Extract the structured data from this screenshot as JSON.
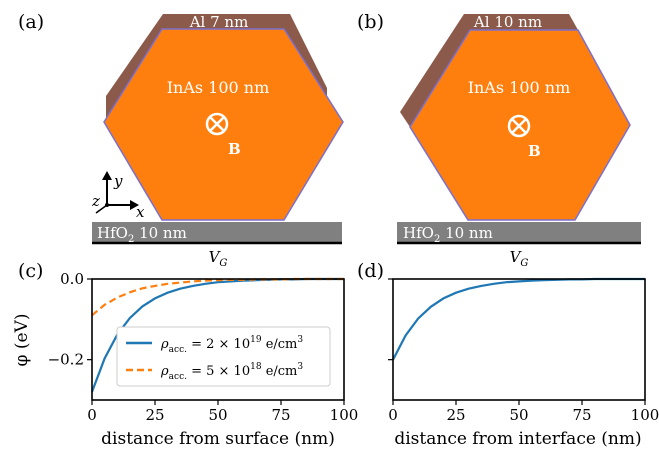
{
  "colors": {
    "inas": "#ff7f0e",
    "inas_outline": "#7b6fd0",
    "al": "#8b5a4a",
    "hfo2": "#808080",
    "gate": "#000000",
    "blue": "#1f77b4",
    "orange": "#ff7f0e"
  },
  "panel_a": {
    "label": "(a)",
    "al_label": "Al 7 nm",
    "inas_label": "InAs 100 nm",
    "b_label": "B",
    "hfo2_label": "HfO",
    "hfo2_sub": "2",
    "hfo2_rest": " 10 nm",
    "gate_label": "V",
    "gate_sub": "G",
    "axis_x": "x",
    "axis_y": "y",
    "axis_z": "z",
    "field_icon": "circled-cross-icon"
  },
  "panel_b": {
    "label": "(b)",
    "al_label": "Al 10 nm",
    "inas_label": "InAs 100 nm",
    "b_label": "B",
    "hfo2_label": "HfO",
    "hfo2_sub": "2",
    "hfo2_rest": " 10 nm",
    "gate_label": "V",
    "gate_sub": "G",
    "field_icon": "circled-cross-icon"
  },
  "chart_data": [
    {
      "panel": "(c)",
      "type": "line",
      "xlabel": "distance from surface (nm)",
      "ylabel": "φ (eV)",
      "xlim": [
        0,
        100
      ],
      "ylim": [
        -0.3,
        0.0
      ],
      "xticks": [
        "0",
        "25",
        "50",
        "75",
        "100"
      ],
      "yticks": [
        "0.0",
        "−0.2"
      ],
      "legend_position": "lower-right",
      "series": [
        {
          "name_main": "ρ",
          "name_sub": "acc.",
          "name_value": " = 2 × 10",
          "name_exp": "19",
          "name_unit": " e/cm",
          "name_unit_exp": "3",
          "style": "solid",
          "color": "#1f77b4",
          "x": [
            0,
            5,
            10,
            15,
            20,
            25,
            30,
            35,
            40,
            45,
            50,
            55,
            60,
            65,
            70,
            75,
            80,
            85,
            90,
            95,
            100
          ],
          "y": [
            -0.28,
            -0.197,
            -0.138,
            -0.097,
            -0.068,
            -0.048,
            -0.034,
            -0.024,
            -0.017,
            -0.012,
            -0.008,
            -0.006,
            -0.004,
            -0.003,
            -0.002,
            -0.001,
            -0.001,
            0.0,
            0.0,
            0.0,
            0.0
          ]
        },
        {
          "name_main": "ρ",
          "name_sub": "acc.",
          "name_value": " = 5 × 10",
          "name_exp": "18",
          "name_unit": " e/cm",
          "name_unit_exp": "3",
          "style": "dashed",
          "color": "#ff7f0e",
          "x": [
            0,
            5,
            10,
            15,
            20,
            25,
            30,
            35,
            40,
            45,
            50,
            55,
            60,
            65,
            70,
            75,
            80,
            85,
            90,
            95,
            100
          ],
          "y": [
            -0.09,
            -0.064,
            -0.046,
            -0.033,
            -0.023,
            -0.017,
            -0.012,
            -0.009,
            -0.006,
            -0.004,
            -0.003,
            -0.002,
            -0.002,
            -0.001,
            -0.001,
            -0.001,
            0.0,
            0.0,
            0.0,
            0.0,
            0.0
          ]
        }
      ]
    },
    {
      "panel": "(d)",
      "type": "line",
      "xlabel": "distance from interface (nm)",
      "ylabel": "",
      "xlim": [
        0,
        100
      ],
      "ylim": [
        -0.3,
        0.0
      ],
      "xticks": [
        "0",
        "25",
        "50",
        "75",
        "100"
      ],
      "yticks": [],
      "series": [
        {
          "style": "solid",
          "color": "#1f77b4",
          "x": [
            0,
            5,
            10,
            15,
            20,
            25,
            30,
            35,
            40,
            45,
            50,
            55,
            60,
            65,
            70,
            75,
            80,
            85,
            90,
            95,
            100
          ],
          "y": [
            -0.2,
            -0.14,
            -0.098,
            -0.069,
            -0.048,
            -0.034,
            -0.024,
            -0.017,
            -0.012,
            -0.008,
            -0.006,
            -0.004,
            -0.003,
            -0.002,
            -0.001,
            -0.001,
            0.0,
            0.0,
            0.0,
            0.0,
            0.0
          ]
        }
      ]
    }
  ]
}
